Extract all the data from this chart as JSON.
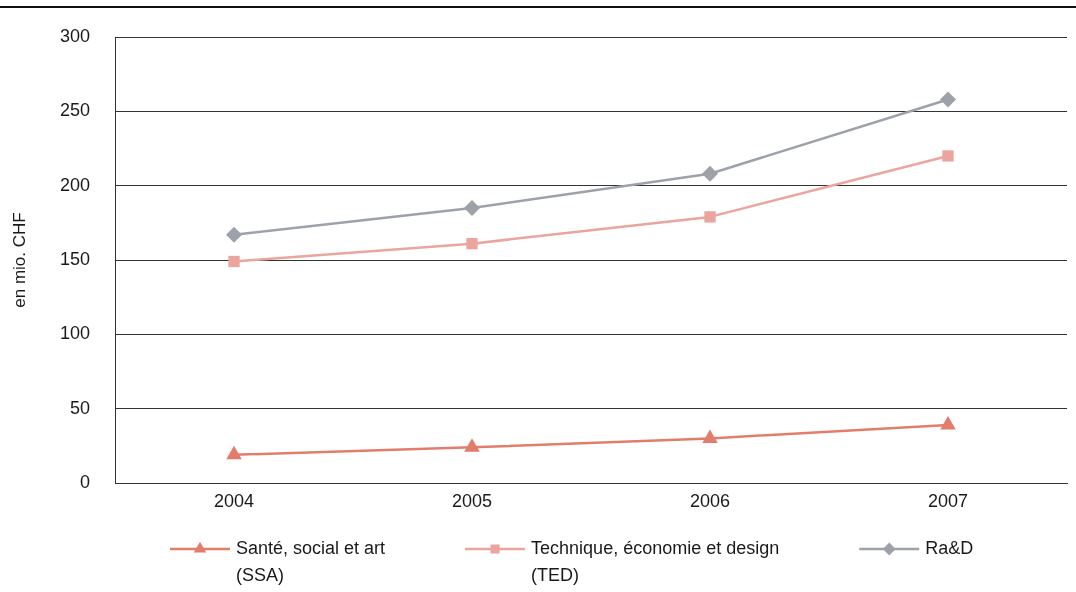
{
  "chart_data": {
    "type": "line",
    "ylabel": "en mio. CHF",
    "categories": [
      "2004",
      "2005",
      "2006",
      "2007"
    ],
    "series": [
      {
        "name": "Santé, social et art (SSA)",
        "color": "#e27d6c",
        "marker": "triangle",
        "values": [
          19,
          24,
          30,
          39
        ]
      },
      {
        "name": "Technique, économie et design (TED)",
        "color": "#eba49e",
        "marker": "square",
        "values": [
          149,
          161,
          179,
          220
        ]
      },
      {
        "name": "Ra&D",
        "color": "#9da2aa",
        "marker": "diamond",
        "values": [
          167,
          185,
          208,
          258
        ]
      }
    ],
    "ylim": [
      0,
      300
    ],
    "yticks": [
      0,
      50,
      100,
      150,
      200,
      250,
      300
    ],
    "grid": "y",
    "legend": "bottom"
  }
}
